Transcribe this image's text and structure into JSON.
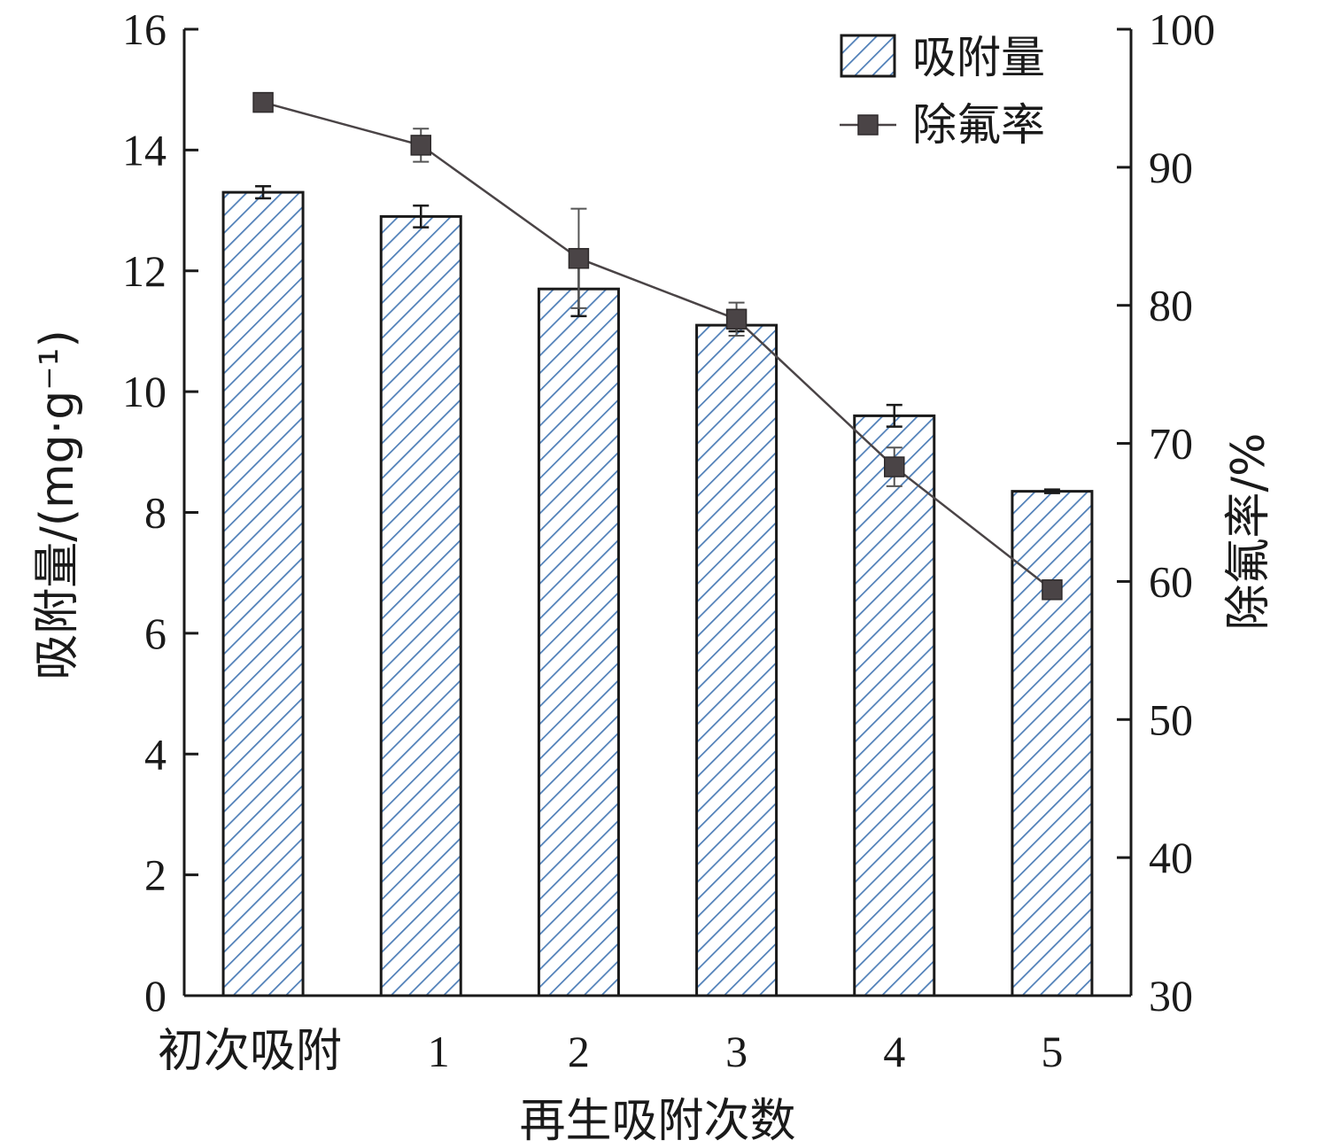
{
  "chart_data": {
    "type": "bar",
    "categories": [
      "初次吸附",
      "1",
      "2",
      "3",
      "4",
      "5"
    ],
    "xlabel": "再生吸附次数",
    "ylabel": "吸附量/(mg·g⁻¹)",
    "y2label": "除氟率/%",
    "ylim": [
      0,
      16
    ],
    "y2lim": [
      30,
      100
    ],
    "yticks": [
      "0",
      "2",
      "4",
      "6",
      "8",
      "10",
      "12",
      "14",
      "16"
    ],
    "y2ticks": [
      "30",
      "40",
      "50",
      "60",
      "70",
      "80",
      "90",
      "100"
    ],
    "grid": false,
    "legend_position": "top-right",
    "series": [
      {
        "name": "吸附量",
        "type": "bar",
        "axis": "left",
        "values": [
          13.3,
          12.9,
          11.7,
          11.1,
          9.6,
          8.35
        ],
        "errors": [
          0.1,
          0.18,
          0.45,
          0.1,
          0.18,
          0.03
        ],
        "color": "#4f7fb8"
      },
      {
        "name": "除氟率",
        "type": "line",
        "axis": "right",
        "values": [
          94.7,
          91.6,
          83.4,
          79.0,
          68.3,
          59.4
        ],
        "errors": [
          0.5,
          1.2,
          3.6,
          1.2,
          1.4,
          0.4
        ],
        "color": "#4a4446"
      }
    ]
  }
}
